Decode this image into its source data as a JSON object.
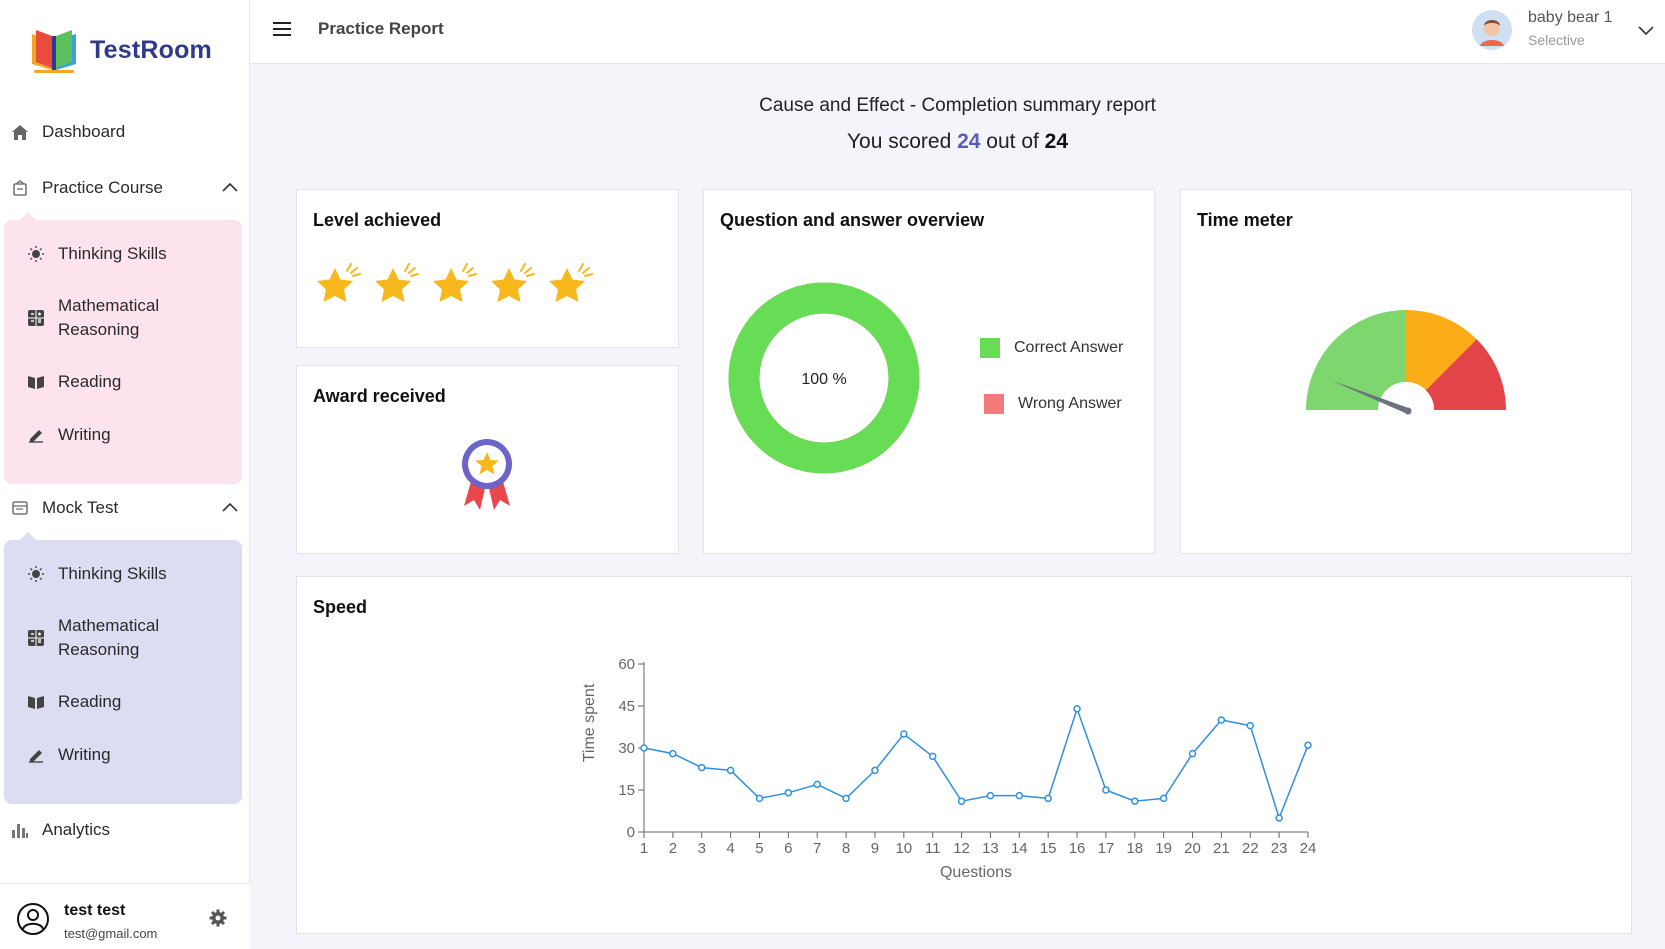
{
  "app": {
    "name": "TestRoom"
  },
  "header": {
    "page_title": "Practice Report",
    "profile_name": "baby bear 1",
    "profile_role": "Selective"
  },
  "sidebar": {
    "dashboard": "Dashboard",
    "practice": {
      "label": "Practice Course",
      "items": [
        "Thinking Skills",
        "Mathematical Reasoning",
        "Reading",
        "Writing"
      ]
    },
    "mock": {
      "label": "Mock Test",
      "items": [
        "Thinking Skills",
        "Mathematical Reasoning",
        "Reading",
        "Writing"
      ]
    },
    "analytics": "Analytics",
    "user": {
      "name": "test test",
      "email": "test@gmail.com"
    }
  },
  "report": {
    "title": "Cause and Effect - Completion summary report",
    "score_prefix": "You scored ",
    "score": "24",
    "score_mid": " out of ",
    "total": "24"
  },
  "cards": {
    "level": {
      "title": "Level achieved",
      "stars": 5
    },
    "award": {
      "title": "Award received"
    },
    "qa": {
      "title": "Question and answer overview",
      "center_label": "100 %",
      "correct_label": "Correct Answer",
      "wrong_label": "Wrong Answer",
      "correct_color": "#66dd55",
      "wrong_color": "#f47a7a",
      "correct_fraction": 1.0
    },
    "time": {
      "title": "Time meter",
      "needle_level": 0.12,
      "zone_colors": [
        "#7ed66e",
        "#fbad18",
        "#e3454a"
      ]
    },
    "speed": {
      "title": "Speed"
    }
  },
  "chart_data": {
    "type": "line",
    "xlabel": "Questions",
    "ylabel": "Time spent",
    "x": [
      1,
      2,
      3,
      4,
      5,
      6,
      7,
      8,
      9,
      10,
      11,
      12,
      13,
      14,
      15,
      16,
      17,
      18,
      19,
      20,
      21,
      22,
      23,
      24
    ],
    "values": [
      30,
      28,
      23,
      22,
      12,
      14,
      17,
      12,
      22,
      35,
      27,
      11,
      13,
      13,
      12,
      44,
      15,
      11,
      12,
      28,
      40,
      38,
      5,
      31
    ],
    "yticks": [
      0,
      15,
      30,
      45,
      60
    ],
    "ylim": [
      0,
      60
    ],
    "color": "#2f8fe0"
  }
}
